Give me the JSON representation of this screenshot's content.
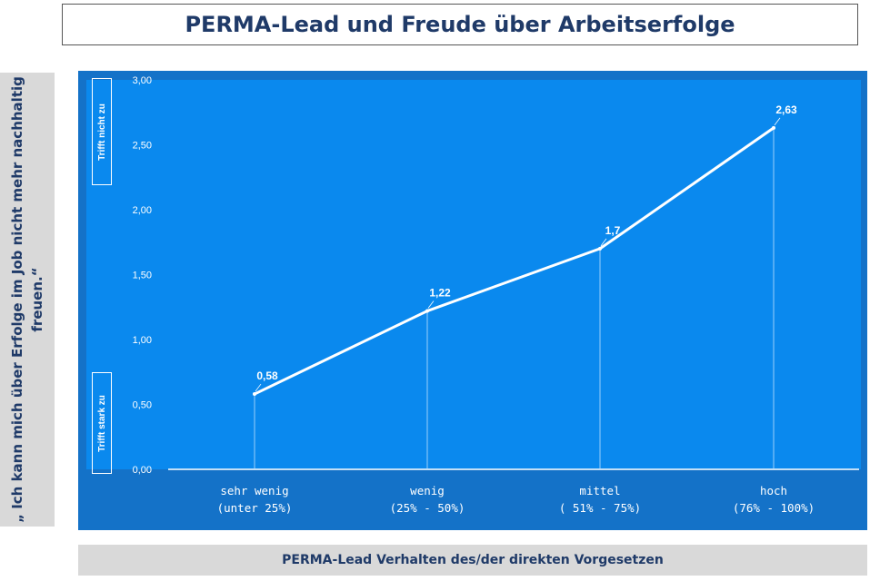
{
  "title": "PERMA-Lead und Freude über Arbeitserfolge",
  "y_axis_title": "„ Ich kann mich über Erfolge im Job nicht mehr nachhaltig\nfreuen.“",
  "x_axis_title": "PERMA-Lead Verhalten des/der direkten Vorgesetzen",
  "tags": {
    "top": "Trifft nicht zu",
    "bottom": "Trifft stark zu"
  },
  "colors": {
    "frame": "#1472c8",
    "plot": "#0a89ee",
    "line": "#ffffff",
    "title_text": "#1f3a68",
    "panel": "#d9d9d9"
  },
  "chart_data": {
    "type": "line",
    "categories": [
      [
        "sehr wenig",
        "(unter 25%)"
      ],
      [
        "wenig",
        "(25% - 50%)"
      ],
      [
        "mittel",
        "( 51% - 75%)"
      ],
      [
        "hoch",
        "(76% - 100%)"
      ]
    ],
    "values": [
      0.58,
      1.22,
      1.7,
      2.63
    ],
    "data_labels": [
      "0,58",
      "1,22",
      "1,7",
      "2,63"
    ],
    "ylim": [
      0,
      3
    ],
    "yticks": [
      "0,00",
      "0,50",
      "1,00",
      "1,50",
      "2,00",
      "2,50",
      "3,00"
    ],
    "grid": false
  }
}
